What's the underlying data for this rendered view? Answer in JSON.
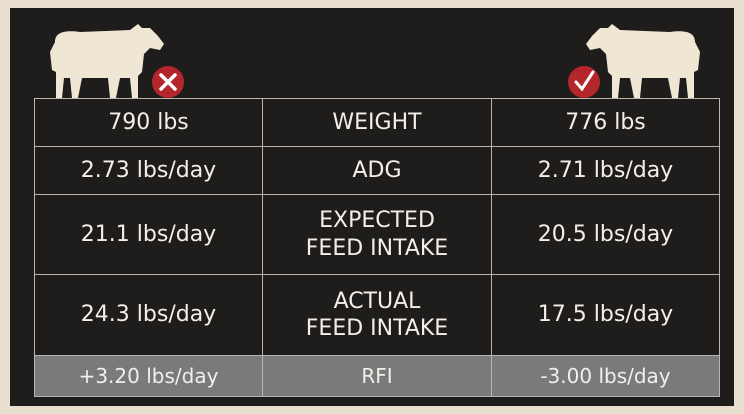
{
  "table": {
    "rows": [
      [
        "790 lbs",
        "WEIGHT",
        "776 lbs"
      ],
      [
        "2.73 lbs/day",
        "ADG",
        "2.71 lbs/day"
      ],
      [
        "21.1 lbs/day",
        "EXPECTED\nFEED INTAKE",
        "20.5 lbs/day"
      ],
      [
        "24.3 lbs/day",
        "ACTUAL\nFEED INTAKE",
        "17.5 lbs/day"
      ],
      [
        "+3.20 lbs/day",
        "RFI",
        "-3.00 lbs/day"
      ]
    ]
  }
}
